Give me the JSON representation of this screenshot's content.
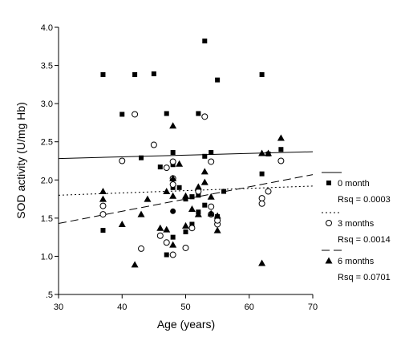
{
  "chart_data": {
    "type": "scatter",
    "title": "",
    "xlabel": "Age (years)",
    "ylabel": "SOD activity (U/mg Hb)",
    "xlim": [
      30,
      70
    ],
    "ylim": [
      0.5,
      4.0
    ],
    "xticks": [
      {
        "value": 30,
        "label": "30"
      },
      {
        "value": 40,
        "label": "40"
      },
      {
        "value": 50,
        "label": "50"
      },
      {
        "value": 60,
        "label": "60"
      },
      {
        "value": 70,
        "label": "70"
      }
    ],
    "yticks": [
      {
        "value": 0.5,
        "label": ".5"
      },
      {
        "value": 1.0,
        "label": "1.0"
      },
      {
        "value": 1.5,
        "label": "1.5"
      },
      {
        "value": 2.0,
        "label": "2.0"
      },
      {
        "value": 2.5,
        "label": "2.5"
      },
      {
        "value": 3.0,
        "label": "3.0"
      },
      {
        "value": 3.5,
        "label": "3.5"
      },
      {
        "value": 4.0,
        "label": "4.0"
      }
    ],
    "grid": false,
    "legend_position": "right",
    "series": [
      {
        "name": "0 month",
        "marker": "filled-square",
        "rsq": "Rsq = 0.0003",
        "fit": {
          "style": "solid",
          "x": [
            30,
            70
          ],
          "y": [
            2.28,
            2.37
          ]
        },
        "x": [
          37,
          42,
          45,
          40,
          53,
          55,
          62,
          47,
          52,
          48,
          43,
          48,
          53,
          54,
          46,
          49,
          51,
          52,
          48,
          50,
          51,
          56,
          63,
          65,
          62,
          52,
          51,
          37,
          47,
          50,
          53,
          55,
          48
        ],
        "y": [
          3.38,
          3.38,
          3.39,
          2.86,
          3.82,
          3.31,
          3.38,
          2.87,
          2.87,
          2.36,
          2.29,
          2.2,
          2.31,
          2.36,
          2.17,
          1.9,
          1.78,
          1.8,
          1.9,
          1.75,
          1.78,
          1.85,
          2.34,
          2.4,
          2.08,
          1.58,
          1.42,
          1.34,
          1.02,
          1.32,
          1.67,
          1.52,
          1.25
        ]
      },
      {
        "name": "3 months",
        "marker": "open-circle",
        "rsq": "Rsq = 0.0014",
        "fit": {
          "style": "dotted",
          "x": [
            30,
            70
          ],
          "y": [
            1.8,
            1.92
          ]
        },
        "x": [
          42,
          45,
          53,
          40,
          48,
          47,
          54,
          48,
          37,
          37,
          48,
          52,
          54,
          55,
          62,
          62,
          63,
          65,
          46,
          47,
          50,
          48,
          43,
          51,
          54,
          55
        ],
        "y": [
          2.86,
          2.46,
          2.83,
          2.25,
          2.24,
          2.16,
          2.24,
          2.02,
          1.66,
          1.55,
          1.94,
          1.85,
          1.65,
          1.42,
          1.76,
          1.69,
          1.85,
          2.25,
          1.27,
          1.18,
          1.11,
          1.02,
          1.1,
          1.37,
          1.55,
          1.47
        ]
      },
      {
        "name": "6 months",
        "marker": "filled-triangle",
        "rsq": "Rsq = 0.0701",
        "fit": {
          "style": "dashed",
          "x": [
            30,
            70
          ],
          "y": [
            1.43,
            2.07
          ]
        },
        "x": [
          37,
          37,
          40,
          42,
          43,
          44,
          46,
          47,
          48,
          48,
          48,
          49,
          50,
          51,
          52,
          53,
          53,
          54,
          55,
          55,
          62,
          63,
          65,
          62,
          47,
          48,
          50,
          52,
          54
        ],
        "y": [
          1.85,
          1.75,
          1.42,
          0.89,
          1.55,
          1.75,
          1.37,
          1.85,
          2.71,
          2.02,
          1.79,
          2.21,
          1.79,
          1.62,
          1.91,
          2.11,
          1.97,
          1.56,
          1.34,
          1.53,
          0.91,
          2.35,
          2.55,
          2.35,
          1.35,
          1.15,
          1.4,
          1.55,
          1.78
        ]
      }
    ],
    "extra_points": [
      {
        "marker": "filled-circle",
        "x": 48,
        "y": 1.59
      }
    ]
  }
}
